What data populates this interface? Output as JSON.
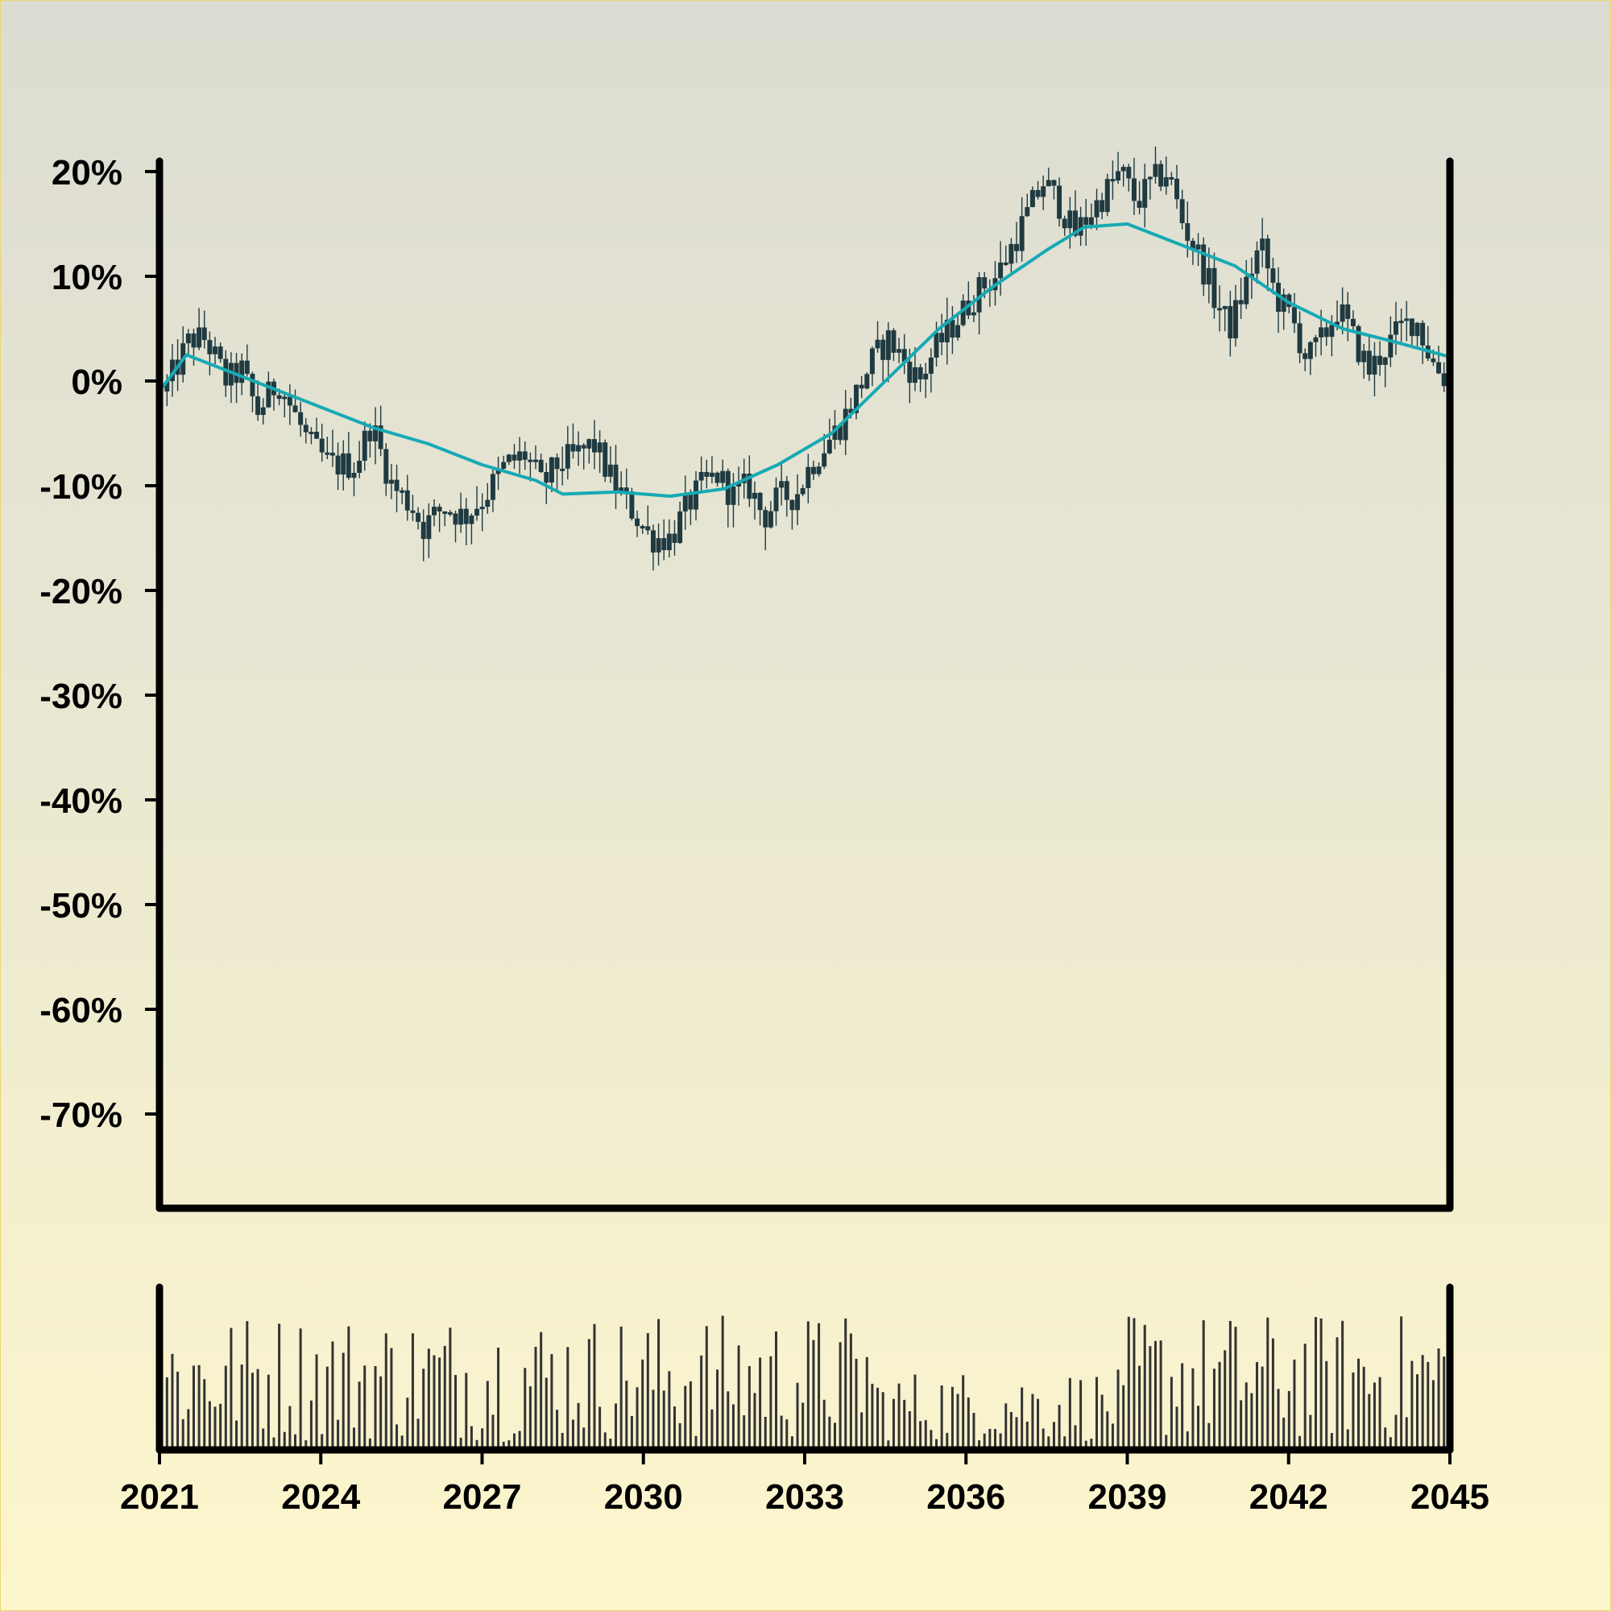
{
  "colors": {
    "background_top": "#dcdcd2",
    "background_bottom": "#fdf6cc",
    "candle": "#1f3a40",
    "moving_average": "#16aab4",
    "axis": "#000000",
    "volume": "#333333"
  },
  "chart_data": {
    "type": "candlestick",
    "title": "",
    "xlabel": "",
    "ylabel": "",
    "x_range": [
      2021,
      2045
    ],
    "x_ticks": [
      "2021",
      "2024",
      "2027",
      "2030",
      "2033",
      "2036",
      "2039",
      "2042",
      "2045"
    ],
    "y_range": [
      -80,
      21
    ],
    "y_ticks": [
      "20%",
      "10%",
      "0%",
      "-10%",
      "-20%",
      "-30%",
      "-40%",
      "-50%",
      "-60%",
      "-70%"
    ],
    "y_tick_values": [
      20,
      10,
      0,
      -10,
      -20,
      -30,
      -40,
      -50,
      -60,
      -70
    ],
    "grid": false,
    "price_series_points": [
      {
        "x": 2021.0,
        "y": -1
      },
      {
        "x": 2021.3,
        "y": 2
      },
      {
        "x": 2021.5,
        "y": 4
      },
      {
        "x": 2021.8,
        "y": 4
      },
      {
        "x": 2022.2,
        "y": 0
      },
      {
        "x": 2022.5,
        "y": 1
      },
      {
        "x": 2022.8,
        "y": -3
      },
      {
        "x": 2023.2,
        "y": 0
      },
      {
        "x": 2023.5,
        "y": -3
      },
      {
        "x": 2023.8,
        "y": -6
      },
      {
        "x": 2024.2,
        "y": -8
      },
      {
        "x": 2024.7,
        "y": -8
      },
      {
        "x": 2025.0,
        "y": -4
      },
      {
        "x": 2025.4,
        "y": -10
      },
      {
        "x": 2025.8,
        "y": -12
      },
      {
        "x": 2026.0,
        "y": -14
      },
      {
        "x": 2026.4,
        "y": -12
      },
      {
        "x": 2026.8,
        "y": -13
      },
      {
        "x": 2027.2,
        "y": -11
      },
      {
        "x": 2027.6,
        "y": -8
      },
      {
        "x": 2028.0,
        "y": -7
      },
      {
        "x": 2028.3,
        "y": -10
      },
      {
        "x": 2028.6,
        "y": -8
      },
      {
        "x": 2029.0,
        "y": -7
      },
      {
        "x": 2029.3,
        "y": -6
      },
      {
        "x": 2029.6,
        "y": -9
      },
      {
        "x": 2030.0,
        "y": -12
      },
      {
        "x": 2030.4,
        "y": -15
      },
      {
        "x": 2030.8,
        "y": -15
      },
      {
        "x": 2031.1,
        "y": -12
      },
      {
        "x": 2031.4,
        "y": -10
      },
      {
        "x": 2031.7,
        "y": -9
      },
      {
        "x": 2032.0,
        "y": -11
      },
      {
        "x": 2032.3,
        "y": -10
      },
      {
        "x": 2032.6,
        "y": -13
      },
      {
        "x": 2032.9,
        "y": -11
      },
      {
        "x": 2033.2,
        "y": -11
      },
      {
        "x": 2033.5,
        "y": -8
      },
      {
        "x": 2033.8,
        "y": -6
      },
      {
        "x": 2034.1,
        "y": -4
      },
      {
        "x": 2034.4,
        "y": -1
      },
      {
        "x": 2034.7,
        "y": 2
      },
      {
        "x": 2035.0,
        "y": 4
      },
      {
        "x": 2035.3,
        "y": 2
      },
      {
        "x": 2035.6,
        "y": 0
      },
      {
        "x": 2035.9,
        "y": 3
      },
      {
        "x": 2036.2,
        "y": 5
      },
      {
        "x": 2036.5,
        "y": 7
      },
      {
        "x": 2036.8,
        "y": 9
      },
      {
        "x": 2037.1,
        "y": 10
      },
      {
        "x": 2037.4,
        "y": 13
      },
      {
        "x": 2037.7,
        "y": 16
      },
      {
        "x": 2038.0,
        "y": 19
      },
      {
        "x": 2038.3,
        "y": 17
      },
      {
        "x": 2038.6,
        "y": 14
      },
      {
        "x": 2038.9,
        "y": 16
      },
      {
        "x": 2039.2,
        "y": 18
      },
      {
        "x": 2039.5,
        "y": 20
      },
      {
        "x": 2039.8,
        "y": 17
      },
      {
        "x": 2040.1,
        "y": 19
      },
      {
        "x": 2040.4,
        "y": 20
      },
      {
        "x": 2040.7,
        "y": 15
      },
      {
        "x": 2041.0,
        "y": 12
      },
      {
        "x": 2041.3,
        "y": 8
      },
      {
        "x": 2041.6,
        "y": 5
      },
      {
        "x": 2041.9,
        "y": 9
      },
      {
        "x": 2042.2,
        "y": 13
      },
      {
        "x": 2042.5,
        "y": 8
      },
      {
        "x": 2042.8,
        "y": 6
      },
      {
        "x": 2043.1,
        "y": 2
      },
      {
        "x": 2043.4,
        "y": 4
      },
      {
        "x": 2043.7,
        "y": 7
      },
      {
        "x": 2044.0,
        "y": 4
      },
      {
        "x": 2044.3,
        "y": 1
      },
      {
        "x": 2044.6,
        "y": 3
      },
      {
        "x": 2044.9,
        "y": 5
      },
      {
        "x": 2045.2,
        "y": 6
      },
      {
        "x": 2045.5,
        "y": 2
      },
      {
        "x": 2045.8,
        "y": 0
      }
    ],
    "moving_average_points": [
      {
        "x": 2021.0,
        "y": -1
      },
      {
        "x": 2021.5,
        "y": 2.5
      },
      {
        "x": 2022.0,
        "y": 1.5
      },
      {
        "x": 2023.0,
        "y": -0.5
      },
      {
        "x": 2024.0,
        "y": -2.5
      },
      {
        "x": 2025.0,
        "y": -4.5
      },
      {
        "x": 2026.0,
        "y": -6
      },
      {
        "x": 2027.0,
        "y": -8
      },
      {
        "x": 2028.0,
        "y": -9.5
      },
      {
        "x": 2028.5,
        "y": -10.8
      },
      {
        "x": 2029.5,
        "y": -10.6
      },
      {
        "x": 2030.5,
        "y": -11
      },
      {
        "x": 2031.5,
        "y": -10.3
      },
      {
        "x": 2032.5,
        "y": -8
      },
      {
        "x": 2033.5,
        "y": -5
      },
      {
        "x": 2034.5,
        "y": 0
      },
      {
        "x": 2035.5,
        "y": 5
      },
      {
        "x": 2036.5,
        "y": 9
      },
      {
        "x": 2037.5,
        "y": 12.5
      },
      {
        "x": 2038.2,
        "y": 14.7
      },
      {
        "x": 2039.0,
        "y": 15
      },
      {
        "x": 2040.0,
        "y": 13
      },
      {
        "x": 2041.0,
        "y": 11
      },
      {
        "x": 2042.0,
        "y": 7.5
      },
      {
        "x": 2043.0,
        "y": 5
      },
      {
        "x": 2044.0,
        "y": 3.7
      },
      {
        "x": 2045.0,
        "y": 2.3
      }
    ],
    "volume_note": "volume bars shown in lower panel, no printed scale"
  }
}
